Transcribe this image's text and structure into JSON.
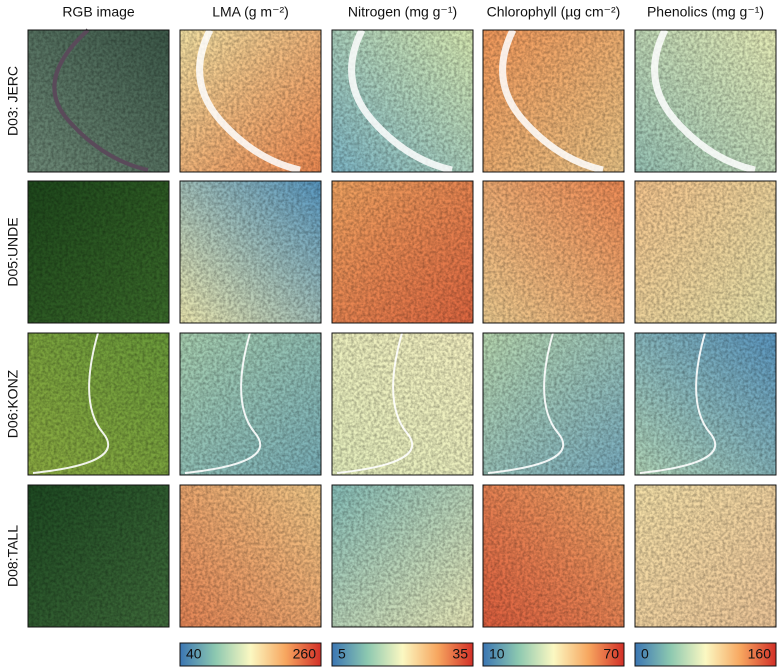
{
  "columns": [
    "RGB image",
    "LMA (g m⁻²)",
    "Nitrogen (mg g⁻¹)",
    "Chlorophyll (µg cm⁻²)",
    "Phenolics (mg g⁻¹)"
  ],
  "rows": [
    "D03: JERC",
    "D05:UNDE",
    "D06:KONZ",
    "D08:TALL"
  ],
  "colorbars": [
    {
      "min": 40,
      "max": 260
    },
    {
      "min": 5,
      "max": 35
    },
    {
      "min": 10,
      "max": 70
    },
    {
      "min": 0,
      "max": 160
    }
  ]
}
